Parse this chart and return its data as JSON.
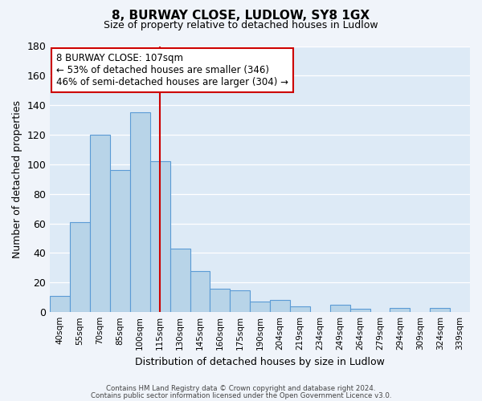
{
  "title": "8, BURWAY CLOSE, LUDLOW, SY8 1GX",
  "subtitle": "Size of property relative to detached houses in Ludlow",
  "xlabel": "Distribution of detached houses by size in Ludlow",
  "ylabel": "Number of detached properties",
  "bar_labels": [
    "40sqm",
    "55sqm",
    "70sqm",
    "85sqm",
    "100sqm",
    "115sqm",
    "130sqm",
    "145sqm",
    "160sqm",
    "175sqm",
    "190sqm",
    "204sqm",
    "219sqm",
    "234sqm",
    "249sqm",
    "264sqm",
    "279sqm",
    "294sqm",
    "309sqm",
    "324sqm",
    "339sqm"
  ],
  "bar_values": [
    11,
    61,
    120,
    96,
    135,
    102,
    43,
    28,
    16,
    15,
    7,
    8,
    4,
    0,
    5,
    2,
    0,
    3,
    0,
    3,
    0
  ],
  "bar_color": "#b8d4e8",
  "bar_edge_color": "#5b9bd5",
  "background_color": "#ddeaf6",
  "fig_background_color": "#f0f4fa",
  "ylim": [
    0,
    180
  ],
  "yticks": [
    0,
    20,
    40,
    60,
    80,
    100,
    120,
    140,
    160,
    180
  ],
  "property_line_x": 5.0,
  "property_line_color": "#cc0000",
  "annotation_line1": "8 BURWAY CLOSE: 107sqm",
  "annotation_line2": "← 53% of detached houses are smaller (346)",
  "annotation_line3": "46% of semi-detached houses are larger (304) →",
  "annotation_box_facecolor": "#ffffff",
  "annotation_box_edgecolor": "#cc0000",
  "footer_line1": "Contains HM Land Registry data © Crown copyright and database right 2024.",
  "footer_line2": "Contains public sector information licensed under the Open Government Licence v3.0."
}
